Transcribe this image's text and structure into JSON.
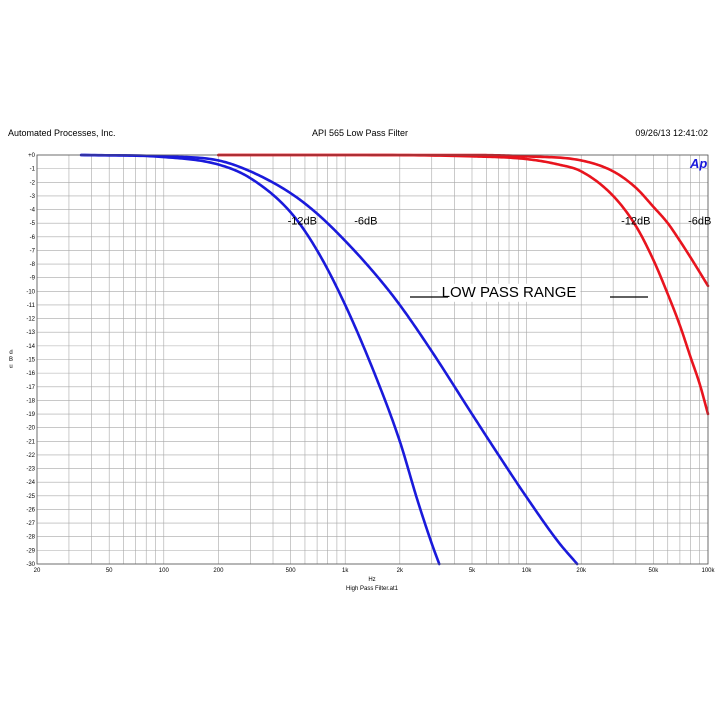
{
  "header": {
    "company": "Automated Processes, Inc.",
    "title": "API 565 Low Pass Filter",
    "timestamp": "09/26/13 12:41:02"
  },
  "footer": {
    "filename": "High Pass Filter.at1"
  },
  "logo_text": "Ap",
  "colors": {
    "blue": "#1a1adb",
    "red": "#e8141e",
    "grid": "#a8a8a8"
  },
  "chart_data": {
    "type": "line",
    "title": "API 565 Low Pass Filter",
    "xlabel": "Hz",
    "ylabel": "d B u",
    "ylabel_chars": [
      "d",
      "B",
      "u"
    ],
    "x_scale": "log",
    "xlim": [
      20,
      100000
    ],
    "ylim": [
      -30,
      0
    ],
    "grid": true,
    "x_ticks": [
      20,
      50,
      100,
      200,
      500,
      1000,
      2000,
      5000,
      10000,
      20000,
      50000,
      100000
    ],
    "x_tick_labels": [
      "20",
      "50",
      "100",
      "200",
      "500",
      "1k",
      "2k",
      "5k",
      "10k",
      "20k",
      "50k",
      "100k"
    ],
    "y_ticks": [
      0,
      -1,
      -2,
      -3,
      -4,
      -5,
      -6,
      -7,
      -8,
      -9,
      -10,
      -11,
      -12,
      -13,
      -14,
      -15,
      -16,
      -17,
      -18,
      -19,
      -20,
      -21,
      -22,
      -23,
      -24,
      -25,
      -26,
      -27,
      -28,
      -29,
      -30
    ],
    "y_tick_labels": [
      "+0",
      "-1",
      "-2",
      "-3",
      "-4",
      "-5",
      "-6",
      "-7",
      "-8",
      "-9",
      "-10",
      "-11",
      "-12",
      "-13",
      "-14",
      "-15",
      "-16",
      "-17",
      "-18",
      "-19",
      "-20",
      "-21",
      "-22",
      "-23",
      "-24",
      "-25",
      "-26",
      "-27",
      "-28",
      "-29",
      "-30"
    ],
    "series": [
      {
        "color": "#1a1adb",
        "x": [
          35,
          100,
          200,
          300,
          500,
          700,
          1000,
          1500,
          2000,
          2500,
          3000,
          3300
        ],
        "y": [
          0,
          -0.15,
          -0.7,
          -1.7,
          -4.2,
          -7,
          -11,
          -16.5,
          -21,
          -25.3,
          -28.5,
          -30
        ]
      },
      {
        "color": "#1a1adb",
        "x": [
          35,
          100,
          200,
          300,
          500,
          700,
          1000,
          1500,
          2000,
          3000,
          5000,
          7000,
          10000,
          15000,
          19000
        ],
        "y": [
          0,
          -0.1,
          -0.4,
          -1.2,
          -2.8,
          -4.3,
          -6.3,
          -8.9,
          -11,
          -14.4,
          -19,
          -22,
          -25.1,
          -28.4,
          -30
        ]
      },
      {
        "color": "#e8141e",
        "x": [
          200,
          1000,
          5000,
          10000,
          15000,
          20000,
          30000,
          40000,
          50000,
          60000,
          70000,
          80000,
          90000,
          100000
        ],
        "y": [
          0,
          0,
          -0.1,
          -0.3,
          -0.7,
          -1.2,
          -3,
          -5.2,
          -7.7,
          -10.2,
          -12.5,
          -14.8,
          -16.8,
          -19
        ]
      },
      {
        "color": "#e8141e",
        "x": [
          200,
          1000,
          5000,
          10000,
          20000,
          30000,
          40000,
          50000,
          60000,
          70000,
          80000,
          90000,
          100000
        ],
        "y": [
          0,
          0,
          0,
          -0.1,
          -0.4,
          -1.2,
          -2.4,
          -3.8,
          -5,
          -6.3,
          -7.5,
          -8.6,
          -9.6
        ]
      }
    ],
    "annotations": [
      {
        "text": "-12dB",
        "x": 580,
        "y": -5.1
      },
      {
        "text": "-6dB",
        "x": 1300,
        "y": -5.1
      },
      {
        "text": "-12dB",
        "x": 40000,
        "y": -5.1
      },
      {
        "text": "-6dB",
        "x": 90000,
        "y": -5.1
      },
      {
        "text": "LOW PASS RANGE",
        "x": 8000,
        "y": -10.4
      }
    ]
  }
}
